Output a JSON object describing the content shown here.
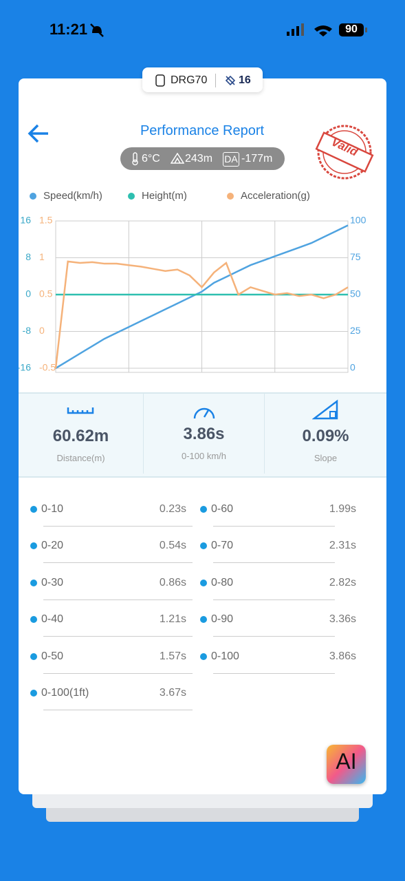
{
  "status_bar": {
    "time": "11:21",
    "battery": "90"
  },
  "device": {
    "name": "DRG70",
    "satellites": "16"
  },
  "header": {
    "title": "Performance Report",
    "temperature": "6°C",
    "altitude": "243m",
    "da_badge": "DA",
    "density_altitude": "-177m",
    "stamp": "Valid"
  },
  "chart_data": {
    "type": "line",
    "grid": true,
    "ylim": [
      -16,
      16
    ],
    "yticks": [
      16,
      8,
      0,
      -8,
      -16
    ],
    "y2lim": [
      0,
      100
    ],
    "y2ticks": [
      100,
      75,
      50,
      25,
      0
    ],
    "y3lim": [
      -0.5,
      1.5
    ],
    "y3ticks": [
      1.5,
      1,
      0.5,
      0,
      -0.5
    ],
    "series": [
      {
        "name": "Speed(km/h)",
        "color": "#4fa3e0",
        "axis": "y2",
        "values": [
          0,
          5,
          10,
          15,
          20,
          24,
          28,
          32,
          36,
          40,
          44,
          48,
          52,
          58,
          62,
          66,
          70,
          73,
          76,
          79,
          82,
          85,
          89,
          93,
          97
        ]
      },
      {
        "name": "Height(m)",
        "color": "#2ebfb0",
        "axis": "y",
        "values": [
          0,
          0,
          0,
          0,
          0,
          0,
          0,
          0,
          0,
          0,
          0,
          0,
          0,
          0,
          0,
          0,
          0,
          0,
          0,
          0,
          0,
          0,
          0,
          0,
          0
        ]
      },
      {
        "name": "Acceleration(g)",
        "color": "#f5b27a",
        "axis": "y3",
        "values": [
          -0.5,
          0.95,
          0.93,
          0.94,
          0.92,
          0.92,
          0.9,
          0.88,
          0.85,
          0.82,
          0.84,
          0.76,
          0.6,
          0.8,
          0.93,
          0.5,
          0.6,
          0.55,
          0.5,
          0.52,
          0.48,
          0.5,
          0.45,
          0.5,
          0.6
        ]
      }
    ]
  },
  "stats": [
    {
      "value": "60.62m",
      "label": "Distance(m)"
    },
    {
      "value": "3.86s",
      "label": "0-100 km/h"
    },
    {
      "value": "0.09%",
      "label": "Slope"
    }
  ],
  "splits": [
    {
      "range": "0-10",
      "time": "0.23s"
    },
    {
      "range": "0-60",
      "time": "1.99s"
    },
    {
      "range": "0-20",
      "time": "0.54s"
    },
    {
      "range": "0-70",
      "time": "2.31s"
    },
    {
      "range": "0-30",
      "time": "0.86s"
    },
    {
      "range": "0-80",
      "time": "2.82s"
    },
    {
      "range": "0-40",
      "time": "1.21s"
    },
    {
      "range": "0-90",
      "time": "3.36s"
    },
    {
      "range": "0-50",
      "time": "1.57s"
    },
    {
      "range": "0-100",
      "time": "3.86s"
    },
    {
      "range": "0-100(1ft)",
      "time": "3.67s"
    }
  ],
  "ai_button": "AI"
}
